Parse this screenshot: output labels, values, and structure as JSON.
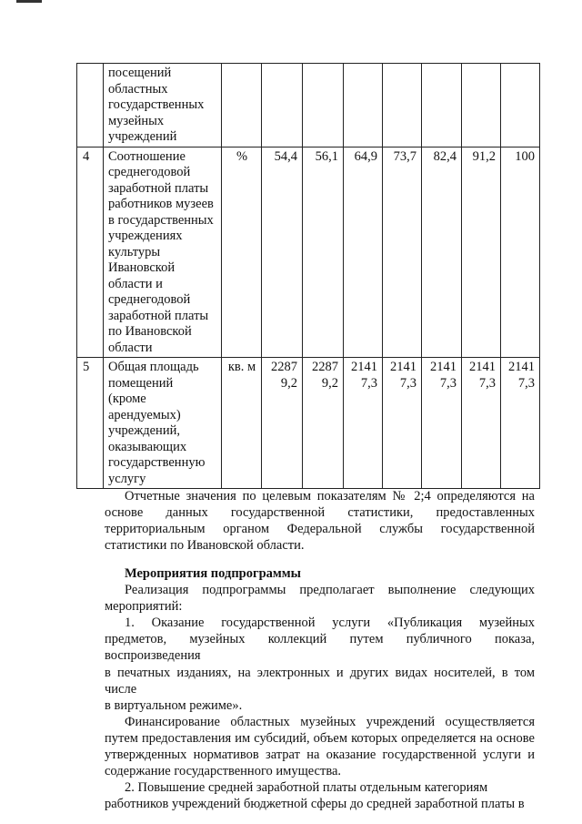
{
  "table": {
    "rows": [
      {
        "index": "",
        "description": "посещений\nобластных\nгосударственных\nмузейных\nучреждений",
        "unit": "",
        "values": [
          "",
          "",
          "",
          "",
          "",
          "",
          ""
        ]
      },
      {
        "index": "4",
        "description": "Соотношение\nсреднегодовой\nзаработной платы\nработников музеев\nв государственных\nучреждениях\nкультуры\nИвановской\nобласти и\nсреднегодовой\nзаработной платы\nпо  Ивановской\nобласти",
        "unit": "%",
        "values": [
          "54,4",
          "56,1",
          "64,9",
          "73,7",
          "82,4",
          "91,2",
          "100"
        ]
      },
      {
        "index": "5",
        "description": "Общая площадь\nпомещений\n(кроме\nарендуемых)\nучреждений,\nоказывающих\nгосударственную\nуслугу",
        "unit": "кв. м",
        "values": [
          "2287\n9,2",
          "2287\n9,2",
          "2141\n7,3",
          "2141\n7,3",
          "2141\n7,3",
          "2141\n7,3",
          "2141\n7,3"
        ]
      }
    ]
  },
  "note_lines": [
    "Отчетные значения по целевым показателям № 2;4 определяются на",
    "основе данных государственной статистики, предоставленных",
    "территориальным органом Федеральной службы государственной",
    "статистики по Ивановской области."
  ],
  "section_heading": "Мероприятия подпрограммы",
  "section_lines": [
    "Реализация подпрограммы предполагает выполнение следующих",
    "мероприятий:",
    "1. Оказание государственной услуги «Публикация музейных",
    "предметов, музейных коллекций путем публичного показа, воспроизведения",
    "в печатных изданиях, на электронных и других видах носителей, в том числе",
    "в виртуальном режиме».",
    "Финансирование областных музейных учреждений осуществляется",
    "путем предоставления им субсидий, объем которых определяется на основе",
    "утвержденных нормативов затрат на оказание государственной услуги и",
    "содержание государственного имущества.",
    "2. Повышение средней заработной платы отдельным категориям",
    "работников учреждений бюджетной сферы до средней заработной платы в"
  ]
}
